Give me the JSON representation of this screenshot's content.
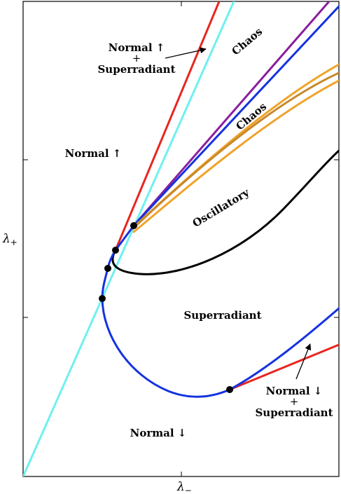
{
  "chart_data": {
    "type": "line",
    "title": "",
    "xlabel": "λ−",
    "ylabel": "λ+",
    "xlabel_main": "λ",
    "xlabel_sub": "−",
    "ylabel_main": "λ",
    "ylabel_sub": "+",
    "grid": false,
    "legend": "none",
    "region_labels": [
      {
        "key": "normal_up_super_top",
        "line1": "Normal ↑",
        "line2": "+",
        "line3": "Superradiant"
      },
      {
        "key": "chaos_upper",
        "text": "Chaos"
      },
      {
        "key": "chaos_lower",
        "text": "Chaos"
      },
      {
        "key": "normal_up",
        "text": "Normal ↑"
      },
      {
        "key": "oscillatory",
        "text": "Oscillatory"
      },
      {
        "key": "superradiant",
        "text": "Superradiant"
      },
      {
        "key": "normal_down_super",
        "line1": "Normal ↓",
        "line2": "+",
        "line3": "Superradiant"
      },
      {
        "key": "normal_down",
        "text": "Normal ↓"
      }
    ],
    "series_colors": {
      "red": "#e8261f",
      "cyan": "#6ff0f0",
      "purple": "#8a1e9e",
      "blue": "#1532e0",
      "orange": "#f0a32a",
      "brown": "#c8892c",
      "black": "#000000"
    },
    "critical_points": 5
  }
}
